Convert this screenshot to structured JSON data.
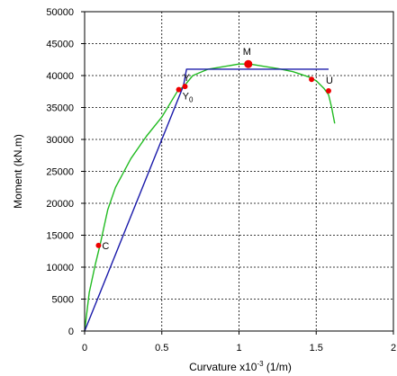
{
  "chart_data": {
    "type": "line",
    "title": "",
    "xlabel": "Curvature x10",
    "xlabel_exp": "-3",
    "xlabel_unit": " (1/m)",
    "ylabel": "Moment (kN.m)",
    "xlim": [
      0,
      2
    ],
    "ylim": [
      0,
      50000
    ],
    "x_ticks": [
      0,
      0.5,
      1,
      1.5,
      2
    ],
    "x_tick_labels": [
      "0",
      "0.5",
      "1",
      "1.5",
      "2"
    ],
    "y_ticks": [
      0,
      5000,
      10000,
      15000,
      20000,
      25000,
      30000,
      35000,
      40000,
      45000,
      50000
    ],
    "y_tick_labels": [
      "0",
      "5000",
      "10000",
      "15000",
      "20000",
      "25000",
      "30000",
      "35000",
      "40000",
      "45000",
      "50000"
    ],
    "grid": true,
    "legend": "none",
    "series": [
      {
        "color": "#22bb22",
        "x": [
          0,
          0.03,
          0.07,
          0.1,
          0.15,
          0.2,
          0.3,
          0.4,
          0.5,
          0.6,
          0.65,
          0.7,
          0.8,
          0.9,
          1.0,
          1.07,
          1.15,
          1.25,
          1.35,
          1.45,
          1.5,
          1.55,
          1.58,
          1.6,
          1.62
        ],
        "y": [
          0,
          6000,
          10500,
          13500,
          19000,
          22500,
          27000,
          30500,
          33500,
          37500,
          38500,
          40000,
          41000,
          41400,
          41800,
          41800,
          41500,
          41100,
          40600,
          39800,
          39200,
          38000,
          37000,
          35000,
          32500
        ]
      },
      {
        "color": "#1a1aaa",
        "x": [
          0,
          0.64,
          0.66,
          1.58
        ],
        "y": [
          0,
          38400,
          41000,
          41000
        ]
      }
    ],
    "points": [
      {
        "label": "C",
        "x": 0.09,
        "y": 13400
      },
      {
        "label": "Y",
        "x": 0.65,
        "y": 38300
      },
      {
        "label": "Y",
        "sub": "0",
        "x": 0.61,
        "y": 37800
      },
      {
        "label": "M",
        "x": 1.06,
        "y": 41800,
        "large": true
      },
      {
        "label": "",
        "x": 1.47,
        "y": 39400
      },
      {
        "label": "U",
        "x": 1.58,
        "y": 37600
      }
    ],
    "colors": {
      "points": "#ee0000"
    }
  }
}
